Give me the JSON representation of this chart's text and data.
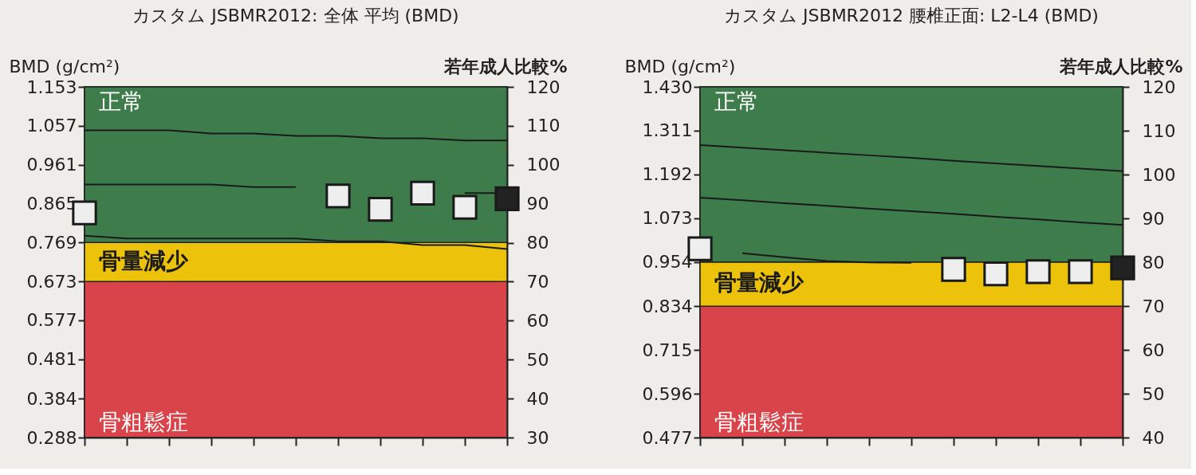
{
  "chart_data": [
    {
      "type": "scatter",
      "title": "カスタム JSBMR2012: 全体 平均 (BMD)",
      "ylabel": "BMD (g/cm²)",
      "y2label": "若年成人比較%",
      "categories": [
        null,
        null,
        null,
        null,
        null,
        null,
        null,
        null,
        null,
        null,
        null
      ],
      "ylim": [
        0.288,
        1.153
      ],
      "yticks": [
        0.288,
        0.384,
        0.481,
        0.577,
        0.673,
        0.769,
        0.865,
        0.961,
        1.057,
        1.153
      ],
      "y2lim": [
        30,
        120
      ],
      "y2ticks": [
        30,
        40,
        50,
        60,
        70,
        80,
        90,
        100,
        110,
        120
      ],
      "bands": [
        {
          "axis": "y",
          "from": 0.288,
          "to": 0.673,
          "label": "骨粗鬆症",
          "color": "#d9434a"
        },
        {
          "axis": "y",
          "from": 0.673,
          "to": 0.769,
          "label": "骨量減少",
          "color": "#ecc20a"
        },
        {
          "axis": "y",
          "from": 0.769,
          "to": 1.153,
          "label": "正常",
          "color": "#3f7c4b"
        }
      ],
      "series": [
        {
          "type": "line",
          "color": "#1a1a1a",
          "values": [
            1.046,
            1.046,
            1.046,
            1.038,
            1.038,
            1.032,
            1.032,
            1.026,
            1.026,
            1.021,
            1.021
          ],
          "marker": "none"
        },
        {
          "type": "line",
          "color": "#1a1a1a",
          "values": [
            0.912,
            0.912,
            0.912,
            0.912,
            0.906,
            0.906,
            null,
            null,
            null,
            0.891,
            0.891
          ],
          "marker": "none"
        },
        {
          "type": "line",
          "color": "#1a1a1a",
          "values": [
            0.786,
            0.779,
            0.779,
            0.779,
            0.779,
            0.779,
            0.772,
            0.772,
            0.763,
            0.763,
            0.753
          ],
          "marker": "none"
        },
        {
          "type": "scatter",
          "values": [
            0.842,
            null,
            null,
            null,
            null,
            null,
            0.884,
            0.851,
            0.891,
            0.856,
            0.877
          ],
          "colors": [
            "#eeeeee",
            null,
            null,
            null,
            null,
            null,
            "#eeeeee",
            "#eeeeee",
            "#eeeeee",
            "#eeeeee",
            "#222222"
          ]
        }
      ],
      "marker": "square",
      "grid": false,
      "legend": false
    },
    {
      "type": "scatter",
      "title": "カスタム JSBMR2012 腰椎正面: L2-L4 (BMD)",
      "ylabel": "BMD (g/cm²)",
      "y2label": "若年成人比較%",
      "categories": [
        null,
        null,
        null,
        null,
        null,
        null,
        null,
        null,
        null,
        null,
        null
      ],
      "ylim": [
        0.477,
        1.43
      ],
      "yticks": [
        0.477,
        0.596,
        0.715,
        0.834,
        0.954,
        1.073,
        1.192,
        1.311,
        {
          "value": 1.43,
          "label": "1.430"
        }
      ],
      "y2lim": [
        40,
        120
      ],
      "y2ticks": [
        40,
        50,
        60,
        70,
        80,
        90,
        100,
        110,
        120
      ],
      "bands": [
        {
          "axis": "y",
          "from": 0.477,
          "to": 0.834,
          "label": "骨粗鬆症",
          "color": "#d9434a"
        },
        {
          "axis": "y",
          "from": 0.834,
          "to": 0.954,
          "label": "骨量減少",
          "color": "#ecc20a"
        },
        {
          "axis": "y",
          "from": 0.954,
          "to": 1.43,
          "label": "正常",
          "color": "#3f7c4b"
        }
      ],
      "series": [
        {
          "type": "line",
          "color": "#1a1a1a",
          "values": [
            1.272,
            1.265,
            1.258,
            1.251,
            1.244,
            1.237,
            1.229,
            1.222,
            1.215,
            1.208,
            1.201
          ],
          "marker": "none"
        },
        {
          "type": "line",
          "color": "#1a1a1a",
          "values": [
            1.129,
            1.122,
            1.114,
            1.107,
            1.099,
            1.092,
            1.085,
            1.077,
            1.07,
            1.062,
            1.055
          ],
          "marker": "none"
        },
        {
          "type": "line",
          "color": "#1a1a1a",
          "values": [
            null,
            0.978,
            0.967,
            0.957,
            0.953,
            0.952,
            null,
            null,
            null,
            null,
            null
          ],
          "marker": "none"
        },
        {
          "type": "scatter",
          "values": [
            0.99,
            null,
            null,
            null,
            null,
            null,
            0.934,
            0.922,
            0.928,
            0.928,
            0.938
          ],
          "colors": [
            "#eeeeee",
            null,
            null,
            null,
            null,
            null,
            "#eeeeee",
            "#eeeeee",
            "#eeeeee",
            "#eeeeee",
            "#222222"
          ]
        }
      ],
      "marker": "square",
      "grid": false,
      "legend": false
    }
  ]
}
